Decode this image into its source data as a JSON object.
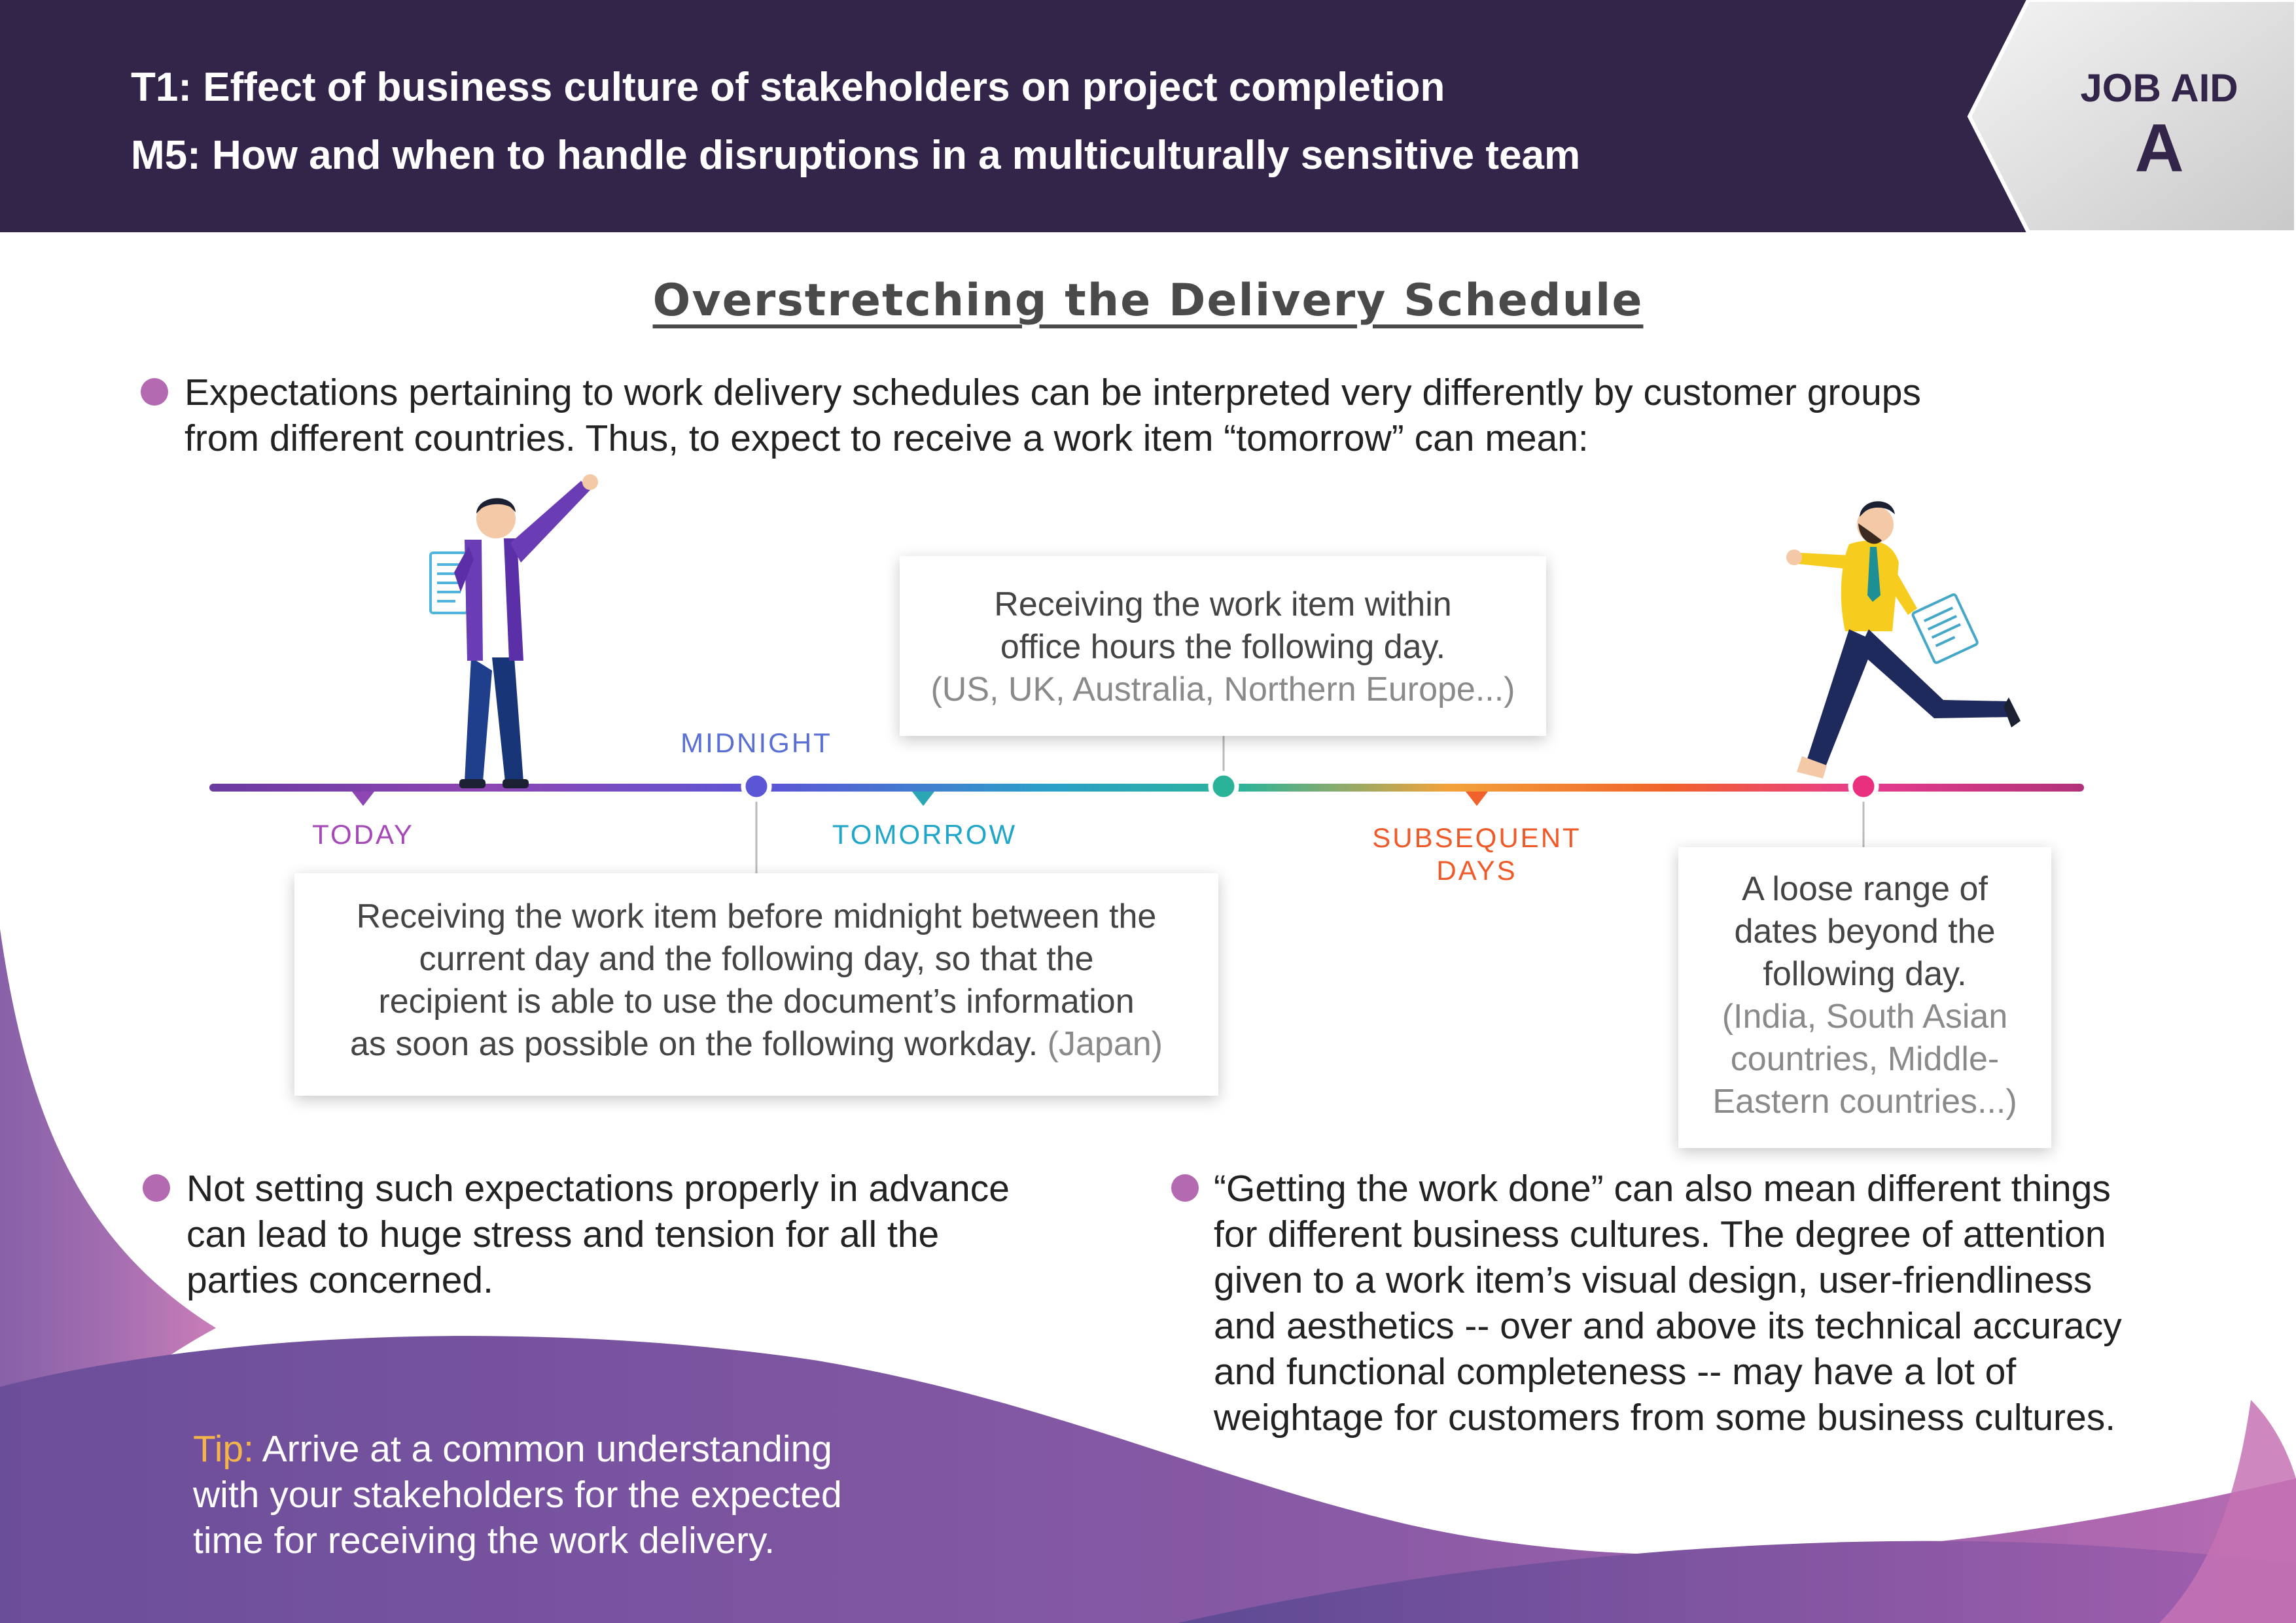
{
  "header": {
    "line1": "T1: Effect of business culture of stakeholders on project completion",
    "line2": "M5: How and when to handle disruptions in a multiculturally sensitive team",
    "badge_label": "JOB AID",
    "badge_letter": "A"
  },
  "title": "Overstretching the Delivery Schedule",
  "intro": {
    "line1": "Expectations pertaining to work delivery schedules can be interpreted very differently by customer groups",
    "line2": "from different countries. Thus, to expect to receive a work item “tomorrow” can mean:"
  },
  "timeline": {
    "labels": {
      "today": "TODAY",
      "midnight": "MIDNIGHT",
      "tomorrow": "TOMORROW",
      "subsequent_1": "SUBSEQUENT",
      "subsequent_2": "DAYS"
    },
    "colors": {
      "today": "#a548b8",
      "midnight": "#5a6fd6",
      "tomorrow": "#1fa6c9",
      "subsequent": "#f05a28"
    }
  },
  "boxes": {
    "office_hours": {
      "line1": "Receiving the work item within",
      "line2": "office hours the following day.",
      "countries": "(US, UK, Australia, Northern Europe...)"
    },
    "midnight": {
      "line1": "Receiving the work item before midnight between the",
      "line2": "current day and the following day, so that the",
      "line3": "recipient is able to use the document’s information",
      "line4": "as soon as possible on the following workday.",
      "countries": "(Japan)"
    },
    "loose": {
      "line1": "A loose range of",
      "line2": "dates beyond the",
      "line3": "following day.",
      "countries1": "(India, South Asian",
      "countries2": "countries, Middle-",
      "countries3": "Eastern countries...)"
    }
  },
  "bullet_left": {
    "line1": "Not setting such expectations properly in advance",
    "line2": "can lead to huge stress and tension for all the",
    "line3": "parties concerned."
  },
  "bullet_right": {
    "line1": "“Getting the work done” can also mean different things",
    "line2": "for different business cultures. The degree of attention",
    "line3": "given to a work item’s visual design, user-friendliness",
    "line4": "and aesthetics -- over and above its technical accuracy",
    "line5": "and functional completeness -- may have a lot of",
    "line6": "weightage for customers from some business cultures."
  },
  "tip": {
    "label": "Tip:",
    "line1": " Arrive at a common understanding",
    "line2": "with your stakeholders for the expected",
    "line3": "time for receiving the work delivery."
  }
}
